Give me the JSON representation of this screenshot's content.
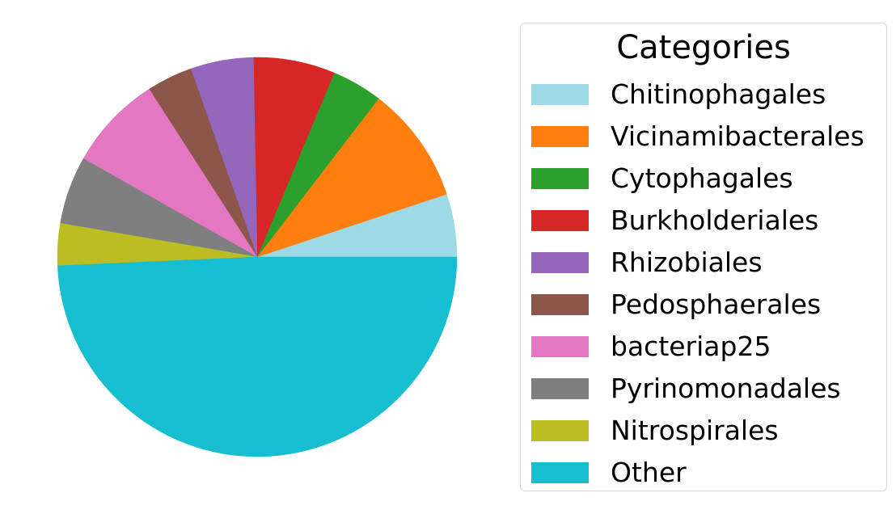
{
  "chart_data": {
    "type": "pie",
    "title": "",
    "legend_title": "Categories",
    "legend_position": "right",
    "start_angle_deg": 0,
    "direction": "counterclockwise",
    "slices": [
      {
        "label": "Chitinophagales",
        "percent": 5.1,
        "color": "#9edae5"
      },
      {
        "label": "Vicinamibacterales",
        "percent": 9.5,
        "color": "#ff7f0e"
      },
      {
        "label": "Cytophagales",
        "percent": 4.1,
        "color": "#2ca02c"
      },
      {
        "label": "Burkholderiales",
        "percent": 6.6,
        "color": "#d62728"
      },
      {
        "label": "Rhizobiales",
        "percent": 5.1,
        "color": "#9467bd"
      },
      {
        "label": "Pedosphaerales",
        "percent": 3.7,
        "color": "#8c564b"
      },
      {
        "label": "bacteriap25",
        "percent": 7.7,
        "color": "#e377c2"
      },
      {
        "label": "Pyrinomonadales",
        "percent": 5.5,
        "color": "#7f7f7f"
      },
      {
        "label": "Nitrospirales",
        "percent": 3.4,
        "color": "#bcbd22"
      },
      {
        "label": "Other",
        "percent": 49.3,
        "color": "#17becf"
      }
    ]
  }
}
